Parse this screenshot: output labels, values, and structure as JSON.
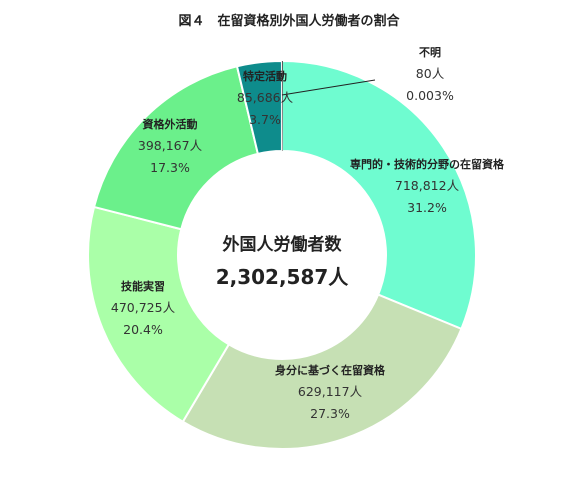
{
  "title": "図４　在留資格別外国人労働者の割合",
  "center": {
    "label": "外国人労働者数",
    "total": "2,302,587人"
  },
  "chart_data": {
    "type": "pie",
    "donut": true,
    "title": "図４　在留資格別外国人労働者の割合",
    "total": 2302587,
    "categories": [
      "専門的・技術的分野の在留資格",
      "身分に基づく在留資格",
      "技能実習",
      "資格外活動",
      "特定活動",
      "不明"
    ],
    "values": [
      718812,
      629117,
      470725,
      398167,
      85686,
      80
    ],
    "counts": [
      "718,812人",
      "629,117人",
      "470,725人",
      "398,167人",
      "85,686人",
      "80人"
    ],
    "percents": [
      "31.2%",
      "27.3%",
      "20.4%",
      "17.3%",
      "3.7%",
      "0.003%"
    ],
    "colors": [
      "#6ffcd0",
      "#c6e0b4",
      "#aaffa8",
      "#6bf08b",
      "#0e8c8c",
      "#1a1a1a"
    ]
  }
}
